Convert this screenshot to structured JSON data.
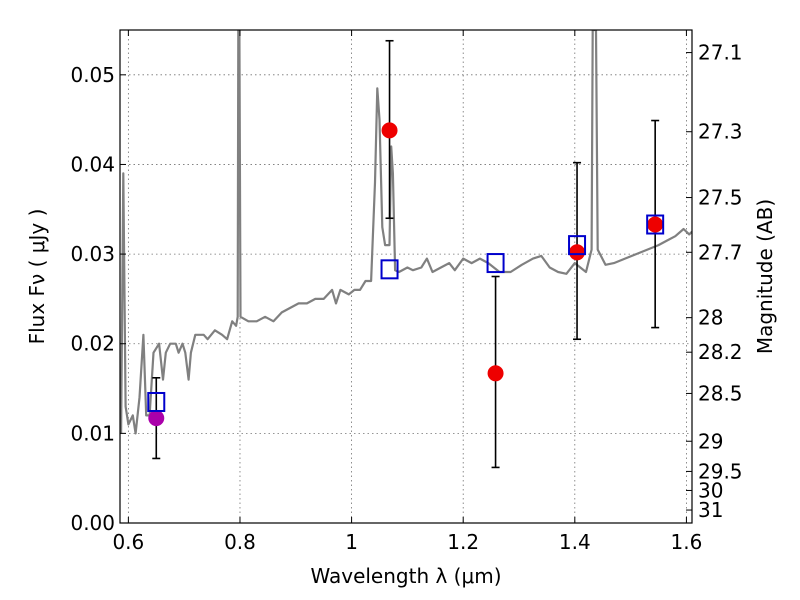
{
  "chart_data": {
    "type": "scatter",
    "xlabel": "Wavelength  λ (μm)",
    "ylabel": "Flux  Fν ( μJy )",
    "ylabel_right": "Magnitude (AB)",
    "xlim": [
      0.585,
      1.61
    ],
    "ylim": [
      0.0,
      0.055
    ],
    "grid": true,
    "x_ticks": [
      {
        "value": 0.6,
        "label": "0.6"
      },
      {
        "value": 0.8,
        "label": "0.8"
      },
      {
        "value": 1.0,
        "label": "1"
      },
      {
        "value": 1.2,
        "label": "1.2"
      },
      {
        "value": 1.4,
        "label": "1.4"
      },
      {
        "value": 1.6,
        "label": "1.6"
      }
    ],
    "y_ticks": [
      {
        "value": 0.0,
        "label": "0.00"
      },
      {
        "value": 0.01,
        "label": "0.01"
      },
      {
        "value": 0.02,
        "label": "0.02"
      },
      {
        "value": 0.03,
        "label": "0.03"
      },
      {
        "value": 0.04,
        "label": "0.04"
      },
      {
        "value": 0.05,
        "label": "0.05"
      }
    ],
    "y2_ticks": [
      {
        "mag": 27.1,
        "label": "27.1"
      },
      {
        "mag": 27.3,
        "label": "27.3"
      },
      {
        "mag": 27.5,
        "label": "27.5"
      },
      {
        "mag": 27.7,
        "label": "27.7"
      },
      {
        "mag": 28.0,
        "label": "28"
      },
      {
        "mag": 28.2,
        "label": "28.2"
      },
      {
        "mag": 28.5,
        "label": "28.5"
      },
      {
        "mag": 29.0,
        "label": "29"
      },
      {
        "mag": 29.5,
        "label": "29.5"
      },
      {
        "mag": 30.0,
        "label": "30"
      },
      {
        "mag": 31.0,
        "label": "31"
      }
    ],
    "series": [
      {
        "kind": "line",
        "color": "#808080",
        "points": [
          [
            0.587,
            0.01
          ],
          [
            0.591,
            0.039
          ],
          [
            0.595,
            0.013
          ],
          [
            0.6,
            0.011
          ],
          [
            0.608,
            0.012
          ],
          [
            0.613,
            0.01
          ],
          [
            0.62,
            0.014
          ],
          [
            0.627,
            0.021
          ],
          [
            0.632,
            0.012
          ],
          [
            0.638,
            0.012
          ],
          [
            0.645,
            0.019
          ],
          [
            0.655,
            0.02
          ],
          [
            0.662,
            0.016
          ],
          [
            0.667,
            0.019
          ],
          [
            0.675,
            0.02
          ],
          [
            0.685,
            0.02
          ],
          [
            0.69,
            0.019
          ],
          [
            0.697,
            0.02
          ],
          [
            0.702,
            0.019
          ],
          [
            0.708,
            0.016
          ],
          [
            0.712,
            0.019
          ],
          [
            0.72,
            0.021
          ],
          [
            0.735,
            0.021
          ],
          [
            0.742,
            0.0205
          ],
          [
            0.755,
            0.0215
          ],
          [
            0.768,
            0.021
          ],
          [
            0.777,
            0.0205
          ],
          [
            0.786,
            0.0225
          ],
          [
            0.793,
            0.022
          ],
          [
            0.796,
            0.023
          ],
          [
            0.797,
            0.055
          ],
          [
            0.799,
            0.055
          ],
          [
            0.801,
            0.023
          ],
          [
            0.815,
            0.0225
          ],
          [
            0.83,
            0.0225
          ],
          [
            0.845,
            0.023
          ],
          [
            0.86,
            0.0225
          ],
          [
            0.875,
            0.0235
          ],
          [
            0.89,
            0.024
          ],
          [
            0.905,
            0.0245
          ],
          [
            0.92,
            0.0245
          ],
          [
            0.935,
            0.025
          ],
          [
            0.95,
            0.025
          ],
          [
            0.965,
            0.026
          ],
          [
            0.972,
            0.0245
          ],
          [
            0.98,
            0.026
          ],
          [
            0.995,
            0.0255
          ],
          [
            1.005,
            0.026
          ],
          [
            1.015,
            0.026
          ],
          [
            1.025,
            0.027
          ],
          [
            1.035,
            0.027
          ],
          [
            1.042,
            0.038
          ],
          [
            1.046,
            0.0485
          ],
          [
            1.05,
            0.045
          ],
          [
            1.055,
            0.033
          ],
          [
            1.06,
            0.031
          ],
          [
            1.068,
            0.031
          ],
          [
            1.071,
            0.042
          ],
          [
            1.074,
            0.039
          ],
          [
            1.078,
            0.0282
          ],
          [
            1.085,
            0.028
          ],
          [
            1.1,
            0.0285
          ],
          [
            1.11,
            0.0282
          ],
          [
            1.125,
            0.0285
          ],
          [
            1.135,
            0.0295
          ],
          [
            1.145,
            0.028
          ],
          [
            1.16,
            0.0285
          ],
          [
            1.175,
            0.029
          ],
          [
            1.185,
            0.0282
          ],
          [
            1.2,
            0.0295
          ],
          [
            1.215,
            0.029
          ],
          [
            1.23,
            0.0295
          ],
          [
            1.245,
            0.029
          ],
          [
            1.265,
            0.028
          ],
          [
            1.285,
            0.028
          ],
          [
            1.305,
            0.0288
          ],
          [
            1.325,
            0.0295
          ],
          [
            1.34,
            0.0298
          ],
          [
            1.355,
            0.0285
          ],
          [
            1.37,
            0.028
          ],
          [
            1.385,
            0.0278
          ],
          [
            1.4,
            0.029
          ],
          [
            1.42,
            0.028
          ],
          [
            1.43,
            0.0305
          ],
          [
            1.432,
            0.055
          ],
          [
            1.438,
            0.055
          ],
          [
            1.441,
            0.0305
          ],
          [
            1.455,
            0.0288
          ],
          [
            1.47,
            0.029
          ],
          [
            1.49,
            0.0295
          ],
          [
            1.51,
            0.03
          ],
          [
            1.53,
            0.0305
          ],
          [
            1.55,
            0.031
          ],
          [
            1.565,
            0.0315
          ],
          [
            1.58,
            0.032
          ],
          [
            1.595,
            0.0328
          ],
          [
            1.605,
            0.0322
          ],
          [
            1.61,
            0.0325
          ]
        ]
      },
      {
        "kind": "observed",
        "points": [
          {
            "x": 0.65,
            "y": 0.0117,
            "yerr_low": 0.0072,
            "yerr_high": 0.0162,
            "color": "#aa00aa"
          },
          {
            "x": 1.068,
            "y": 0.0438,
            "yerr_low": 0.034,
            "yerr_high": 0.0538,
            "color": "#ee0000"
          },
          {
            "x": 1.258,
            "y": 0.0167,
            "yerr_low": 0.0062,
            "yerr_high": 0.0275,
            "color": "#ee0000"
          },
          {
            "x": 1.404,
            "y": 0.0302,
            "yerr_low": 0.0205,
            "yerr_high": 0.0402,
            "color": "#ee0000"
          },
          {
            "x": 1.544,
            "y": 0.0333,
            "yerr_low": 0.0218,
            "yerr_high": 0.0449,
            "color": "#ee0000"
          }
        ]
      },
      {
        "kind": "model",
        "color": "#0000cc",
        "points": [
          {
            "x": 0.65,
            "y": 0.0135
          },
          {
            "x": 1.068,
            "y": 0.0283
          },
          {
            "x": 1.258,
            "y": 0.029
          },
          {
            "x": 1.404,
            "y": 0.031
          },
          {
            "x": 1.544,
            "y": 0.0333
          }
        ]
      }
    ]
  }
}
